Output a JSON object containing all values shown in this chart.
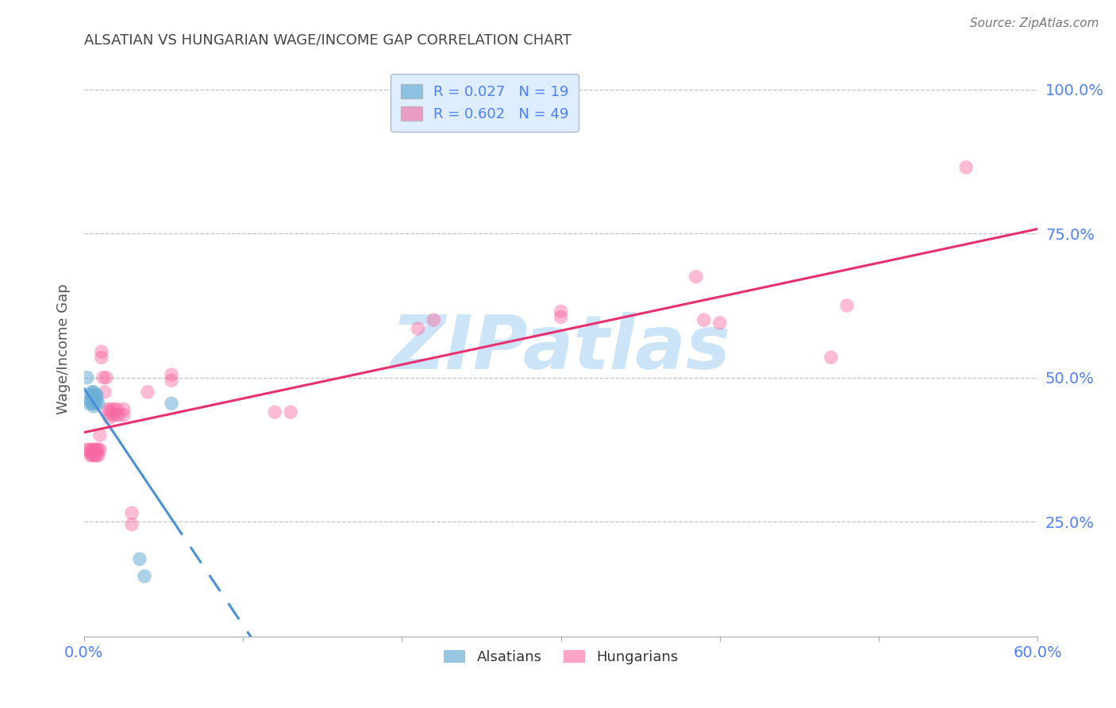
{
  "title": "ALSATIAN VS HUNGARIAN WAGE/INCOME GAP CORRELATION CHART",
  "source": "Source: ZipAtlas.com",
  "ylabel": "Wage/Income Gap",
  "xlim": [
    0.0,
    0.6
  ],
  "ylim": [
    0.05,
    1.05
  ],
  "yticks": [
    0.25,
    0.5,
    0.75,
    1.0
  ],
  "ytick_labels": [
    "25.0%",
    "50.0%",
    "75.0%",
    "100.0%"
  ],
  "xticks": [
    0.0,
    0.1,
    0.2,
    0.3,
    0.4,
    0.5,
    0.6
  ],
  "xtick_labels": [
    "0.0%",
    "",
    "",
    "",
    "",
    "",
    "60.0%"
  ],
  "alsatian_R": 0.027,
  "alsatian_N": 19,
  "hungarian_R": 0.602,
  "hungarian_N": 49,
  "alsatian_color": "#6baed6",
  "hungarian_color": "#f768a1",
  "alsatian_line_color": "#4a90d9",
  "hungarian_line_color": "#e8306e",
  "background_color": "#ffffff",
  "grid_color": "#bbbbbb",
  "tick_label_color": "#4d7fff",
  "title_color": "#444444",
  "watermark_color": "#cce4f7",
  "legend_box_color": "#deeeff",
  "legend_border_color": "#aabccc",
  "alsatian_x": [
    0.002,
    0.003,
    0.004,
    0.004,
    0.005,
    0.005,
    0.005,
    0.006,
    0.006,
    0.006,
    0.007,
    0.007,
    0.007,
    0.008,
    0.008,
    0.009,
    0.035,
    0.038,
    0.055
  ],
  "alsatian_y": [
    0.5,
    0.455,
    0.47,
    0.46,
    0.475,
    0.465,
    0.455,
    0.475,
    0.46,
    0.45,
    0.47,
    0.465,
    0.455,
    0.47,
    0.46,
    0.455,
    0.185,
    0.155,
    0.455
  ],
  "hungarian_x": [
    0.002,
    0.003,
    0.004,
    0.004,
    0.005,
    0.005,
    0.006,
    0.006,
    0.007,
    0.007,
    0.008,
    0.008,
    0.009,
    0.009,
    0.01,
    0.01,
    0.011,
    0.011,
    0.012,
    0.013,
    0.014,
    0.015,
    0.016,
    0.016,
    0.017,
    0.018,
    0.019,
    0.02,
    0.021,
    0.022,
    0.025,
    0.025,
    0.03,
    0.03,
    0.04,
    0.055,
    0.055,
    0.12,
    0.13,
    0.21,
    0.22,
    0.3,
    0.3,
    0.385,
    0.39,
    0.4,
    0.47,
    0.48,
    0.555
  ],
  "hungarian_y": [
    0.375,
    0.375,
    0.37,
    0.365,
    0.375,
    0.365,
    0.375,
    0.365,
    0.375,
    0.365,
    0.375,
    0.365,
    0.375,
    0.365,
    0.4,
    0.375,
    0.545,
    0.535,
    0.5,
    0.475,
    0.5,
    0.445,
    0.44,
    0.43,
    0.445,
    0.435,
    0.445,
    0.435,
    0.445,
    0.435,
    0.445,
    0.435,
    0.265,
    0.245,
    0.475,
    0.505,
    0.495,
    0.44,
    0.44,
    0.585,
    0.6,
    0.615,
    0.605,
    0.675,
    0.6,
    0.595,
    0.535,
    0.625,
    0.865
  ],
  "als_line_x_solid_end": 0.055,
  "als_line_x_dash_end": 0.6,
  "hun_line_x_start": 0.0,
  "hun_line_x_end": 0.6
}
